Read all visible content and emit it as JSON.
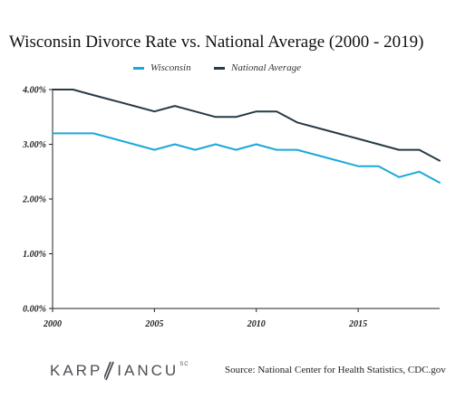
{
  "chart_data": {
    "type": "line",
    "title": "Wisconsin Divorce Rate vs. National Average (2000 - 2019)",
    "xlabel": "",
    "ylabel": "",
    "x": [
      2000,
      2001,
      2002,
      2003,
      2004,
      2005,
      2006,
      2007,
      2008,
      2009,
      2010,
      2011,
      2012,
      2013,
      2014,
      2015,
      2016,
      2017,
      2018,
      2019
    ],
    "xticks": [
      "2000",
      "2005",
      "2010",
      "2015"
    ],
    "xtick_values": [
      2000,
      2005,
      2010,
      2015
    ],
    "xlim": [
      2000,
      2019
    ],
    "yticks": [
      "0.00%",
      "1.00%",
      "2.00%",
      "3.00%",
      "4.00%"
    ],
    "ytick_values": [
      0,
      1,
      2,
      3,
      4
    ],
    "ylim": [
      0,
      4
    ],
    "legend_position": "top-center",
    "grid": false,
    "series": [
      {
        "name": "Wisconsin",
        "color": "#1ba8d8",
        "values": [
          3.2,
          3.2,
          3.2,
          3.1,
          3.0,
          2.9,
          3.0,
          2.9,
          3.0,
          2.9,
          3.0,
          2.9,
          2.9,
          2.8,
          2.7,
          2.6,
          2.6,
          2.4,
          2.5,
          2.3
        ]
      },
      {
        "name": "National Average",
        "color": "#263b47",
        "values": [
          4.0,
          4.0,
          3.9,
          3.8,
          3.7,
          3.6,
          3.7,
          3.6,
          3.5,
          3.5,
          3.6,
          3.6,
          3.4,
          3.3,
          3.2,
          3.1,
          3.0,
          2.9,
          2.9,
          2.7
        ]
      }
    ]
  },
  "logo": {
    "left_text": "KARP",
    "right_text": "IANCU",
    "suffix": "SC",
    "mark_icon": "slash-mark-icon"
  },
  "footer": {
    "source": "Source: National Center for Health Statistics, CDC.gov"
  },
  "colors": {
    "axis": "#222222",
    "logo": "#4a4f55"
  }
}
